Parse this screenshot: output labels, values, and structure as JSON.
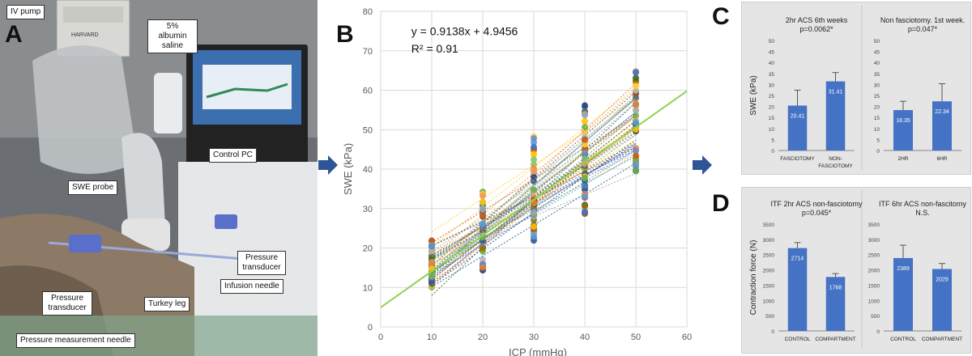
{
  "labels": {
    "panel_a": "A",
    "panel_b": "B",
    "panel_c": "C",
    "panel_d": "D"
  },
  "photo_callouts": {
    "iv_pump": "IV pump",
    "albumin": "5% albumin saline",
    "control_pc": "Control PC",
    "swe_probe": "SWE probe",
    "pressure_transducer_right": "Pressure transducer",
    "infusion_needle": "Infusion needle",
    "pressure_transducer_left": "Pressure transducer",
    "turkey_leg": "Turkey leg",
    "pressure_needle": "Pressure measurement needle",
    "device_brand": "HARVARD"
  },
  "colors": {
    "bar_blue": "#4472c4",
    "trend_green": "#92d050",
    "arrow_blue": "#2e5597",
    "panel_bg": "#e5e5e5"
  },
  "chart_data": [
    {
      "id": "B",
      "type": "scatter",
      "equation": "y = 0.9138x + 4.9456",
      "r_squared": "R² = 0.91",
      "xlabel": "ICP (mmHg)",
      "ylabel": "SWE (kPa)",
      "xlim": [
        0,
        60
      ],
      "ylim": [
        0,
        80
      ],
      "xticks": [
        0,
        10,
        20,
        30,
        40,
        50,
        60
      ],
      "yticks": [
        0,
        10,
        20,
        30,
        40,
        50,
        60,
        70,
        80
      ],
      "grid": true,
      "x_levels": [
        10,
        20,
        30,
        40,
        50
      ],
      "y_ranges": [
        [
          9,
          23
        ],
        [
          12.5,
          37
        ],
        [
          18,
          51
        ],
        [
          26,
          59
        ],
        [
          36.5,
          68
        ]
      ],
      "trendline": {
        "slope": 0.9138,
        "intercept": 4.9456
      }
    },
    {
      "id": "C-left",
      "type": "bar",
      "title_line1": "2hr ACS 6th weeks",
      "title_line2": "p=0.0062*",
      "ylabel": "SWE (kPa)",
      "categories": [
        "FASCIOTOMY",
        "NON-FASCIOTOMY"
      ],
      "values": [
        20.41,
        31.41
      ],
      "value_labels": [
        "20.41",
        "31.41"
      ],
      "error": [
        7,
        4
      ],
      "ylim": [
        0,
        50
      ],
      "yticks": [
        0,
        5,
        10,
        15,
        20,
        25,
        30,
        35,
        40,
        45,
        50
      ]
    },
    {
      "id": "C-right",
      "type": "bar",
      "title_line1": "Non fasciotomy. 1st week.",
      "title_line2": "p=0.047*",
      "ylabel": "",
      "categories": [
        "2HR",
        "6HR"
      ],
      "values": [
        18.35,
        22.34
      ],
      "value_labels": [
        "18.35",
        "22.34"
      ],
      "error": [
        4,
        8
      ],
      "ylim": [
        0,
        50
      ],
      "yticks": [
        0,
        5,
        10,
        15,
        20,
        25,
        30,
        35,
        40,
        45,
        50
      ]
    },
    {
      "id": "D-left",
      "type": "bar",
      "title_line1": "ITF 2hr ACS non-fasciotomy",
      "title_line2": "p=0.045*",
      "ylabel": "Contraction force (N)",
      "categories": [
        "CONTROL",
        "COMPARTMENT"
      ],
      "values": [
        2714,
        1768
      ],
      "value_labels": [
        "2714",
        "1768"
      ],
      "error": [
        180,
        110
      ],
      "ylim": [
        0,
        3500
      ],
      "yticks": [
        0,
        500,
        1000,
        1500,
        2000,
        2500,
        3000,
        3500
      ]
    },
    {
      "id": "D-right",
      "type": "bar",
      "title_line1": "ITF 6hr ACS non-fascitomy",
      "title_line2": "N.S.",
      "ylabel": "",
      "categories": [
        "CONTROL",
        "COMPARTMENT"
      ],
      "values": [
        2389,
        2029
      ],
      "value_labels": [
        "2389",
        "2029"
      ],
      "error": [
        420,
        180
      ],
      "ylim": [
        0,
        3500
      ],
      "yticks": [
        0,
        500,
        1000,
        1500,
        2000,
        2500,
        3000,
        3500
      ]
    }
  ]
}
